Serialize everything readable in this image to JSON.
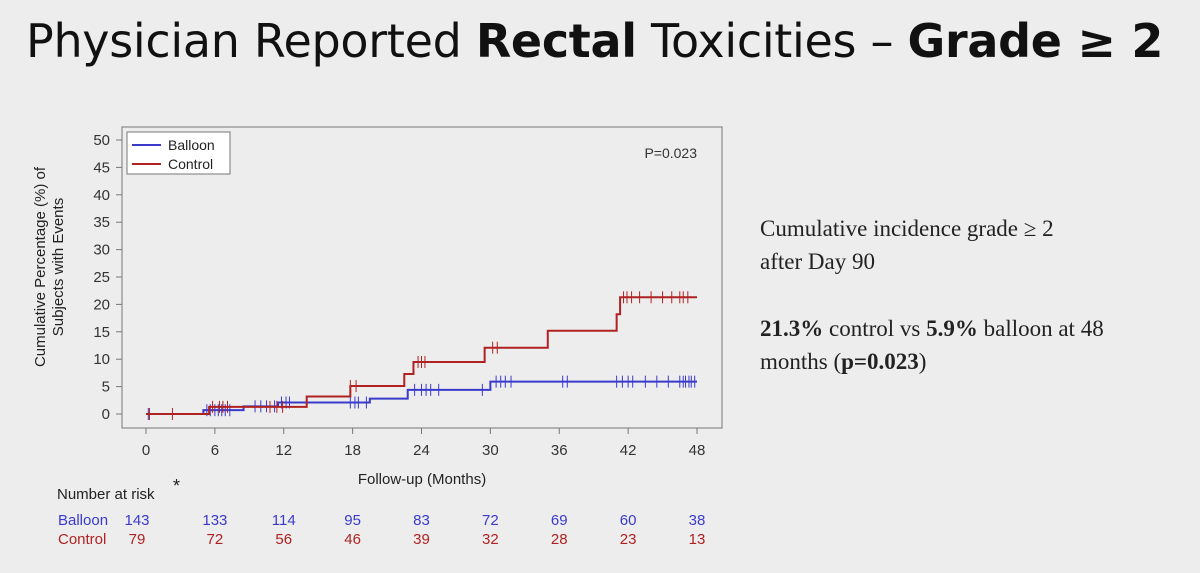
{
  "slide": {
    "title_prefix": "Physician Reported ",
    "title_bold_1": "Rectal",
    "title_middle": " Toxicities – ",
    "title_bold_2": "Grade ≥ 2"
  },
  "notes": {
    "line1": "Cumulative incidence grade ≥ 2",
    "line2": "after Day 90",
    "stat_control": "21.3%",
    "text_control": " control vs ",
    "stat_balloon": "5.9%",
    "text_balloon": " balloon at 48",
    "line4_open": "months (",
    "p_value": "p=0.023",
    "line4_close": ")"
  },
  "chart_data": {
    "type": "line",
    "step": true,
    "ylabel": "Cumulative Percentage (%) of Subjects with Events",
    "xlabel": "Follow-up (Months)",
    "xlim": [
      0,
      48
    ],
    "ylim": [
      0,
      50
    ],
    "x_ticks": [
      0,
      6,
      12,
      18,
      24,
      30,
      36,
      42,
      48
    ],
    "y_ticks": [
      0,
      5,
      10,
      15,
      20,
      25,
      30,
      35,
      40,
      45,
      50
    ],
    "annotation": "P=0.023",
    "legend_position": "top-left",
    "grid": false,
    "series": [
      {
        "name": "Balloon",
        "color": "#3a3acc",
        "steps": [
          [
            0,
            0
          ],
          [
            5,
            0.7
          ],
          [
            8.5,
            1.4
          ],
          [
            11.5,
            2.1
          ],
          [
            19.5,
            2.8
          ],
          [
            22.8,
            4.4
          ],
          [
            30,
            5.9
          ],
          [
            48,
            5.9
          ]
        ],
        "censor_x": [
          0.2,
          5.3,
          5.6,
          6.0,
          6.3,
          6.6,
          6.9,
          7.3,
          9.5,
          10.0,
          10.5,
          11.2,
          11.8,
          12.2,
          12.5,
          17.8,
          18.2,
          18.5,
          19.2,
          23.4,
          24.0,
          24.4,
          24.8,
          25.5,
          29.3,
          30.5,
          30.9,
          31.3,
          31.8,
          36.3,
          36.7,
          41.0,
          41.5,
          42.0,
          42.4,
          43.5,
          44.5,
          45.5,
          46.5,
          46.8,
          47.0,
          47.3,
          47.5,
          47.8
        ]
      },
      {
        "name": "Control",
        "color": "#b02222",
        "steps": [
          [
            0,
            0
          ],
          [
            5.5,
            1.3
          ],
          [
            8.5,
            1.3
          ],
          [
            12,
            1.3
          ],
          [
            14,
            3.2
          ],
          [
            17.8,
            5.1
          ],
          [
            22.5,
            7.3
          ],
          [
            23.3,
            9.5
          ],
          [
            29.5,
            12.1
          ],
          [
            35,
            15.2
          ],
          [
            41,
            18.2
          ],
          [
            41.3,
            21.3
          ],
          [
            48,
            21.3
          ]
        ],
        "censor_x": [
          0.3,
          2.3,
          5.8,
          6.4,
          6.7,
          7.1,
          10.8,
          11.4,
          11.9,
          17.8,
          18.3,
          23.7,
          24.0,
          24.3,
          30.2,
          30.6,
          41.6,
          41.9,
          42.3,
          43.0,
          44.0,
          45.0,
          45.8,
          46.5,
          46.8,
          47.2
        ]
      }
    ]
  },
  "risk_table": {
    "title": "Number at risk",
    "asterisk": "*",
    "x": [
      0,
      6,
      12,
      18,
      24,
      30,
      36,
      42,
      48
    ],
    "rows": [
      {
        "name": "Balloon",
        "color": "#3a3acc",
        "values": [
          "143",
          "133",
          "114",
          "95",
          "83",
          "72",
          "69",
          "60",
          "38"
        ]
      },
      {
        "name": "Control",
        "color": "#b02222",
        "values": [
          "79",
          "72",
          "56",
          "46",
          "39",
          "32",
          "28",
          "23",
          "13"
        ]
      }
    ]
  }
}
